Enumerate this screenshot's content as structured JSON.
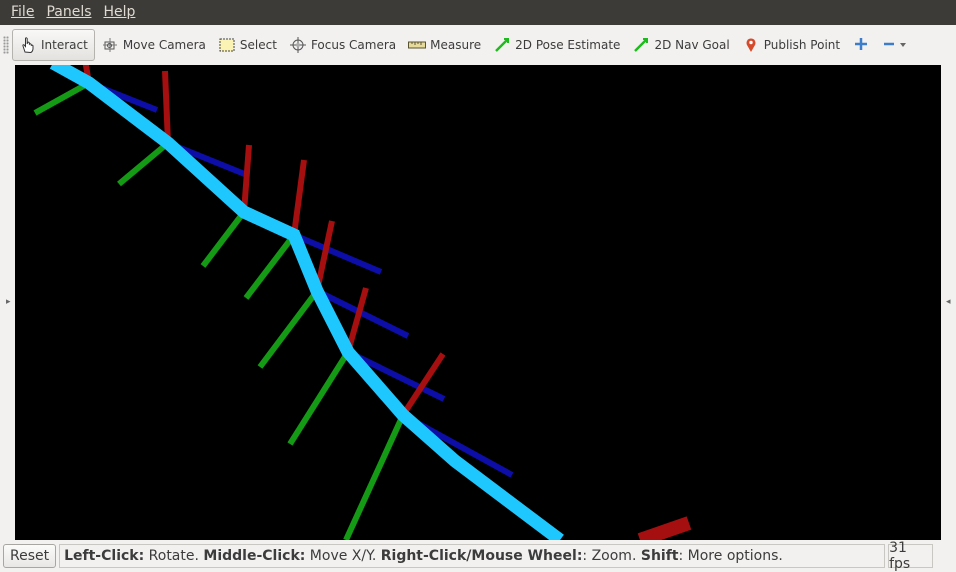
{
  "menubar": {
    "items": [
      {
        "label": "File"
      },
      {
        "label": "Panels"
      },
      {
        "label": "Help"
      }
    ]
  },
  "toolbar": {
    "tools": {
      "interact": "Interact",
      "move_camera": "Move Camera",
      "select": "Select",
      "focus_camera": "Focus Camera",
      "measure": "Measure",
      "pose_estimate": "2D Pose Estimate",
      "nav_goal": "2D Nav Goal",
      "publish_point": "Publish Point"
    }
  },
  "viewport": {
    "background": "#000000",
    "path_color": "#1ec8ff",
    "x_axis_color": "#a50f0f",
    "y_axis_color": "#149a14",
    "z_axis_color": "#0d0da8"
  },
  "statusbar": {
    "reset_label": "Reset",
    "hint": [
      {
        "b": "Left-Click:",
        "t": " Rotate. "
      },
      {
        "b": "Middle-Click:",
        "t": " Move X/Y. "
      },
      {
        "b": "Right-Click/Mouse Wheel:",
        "t": ": Zoom. "
      },
      {
        "b": "Shift",
        "t": ": More options."
      }
    ],
    "fps": "31 fps"
  }
}
